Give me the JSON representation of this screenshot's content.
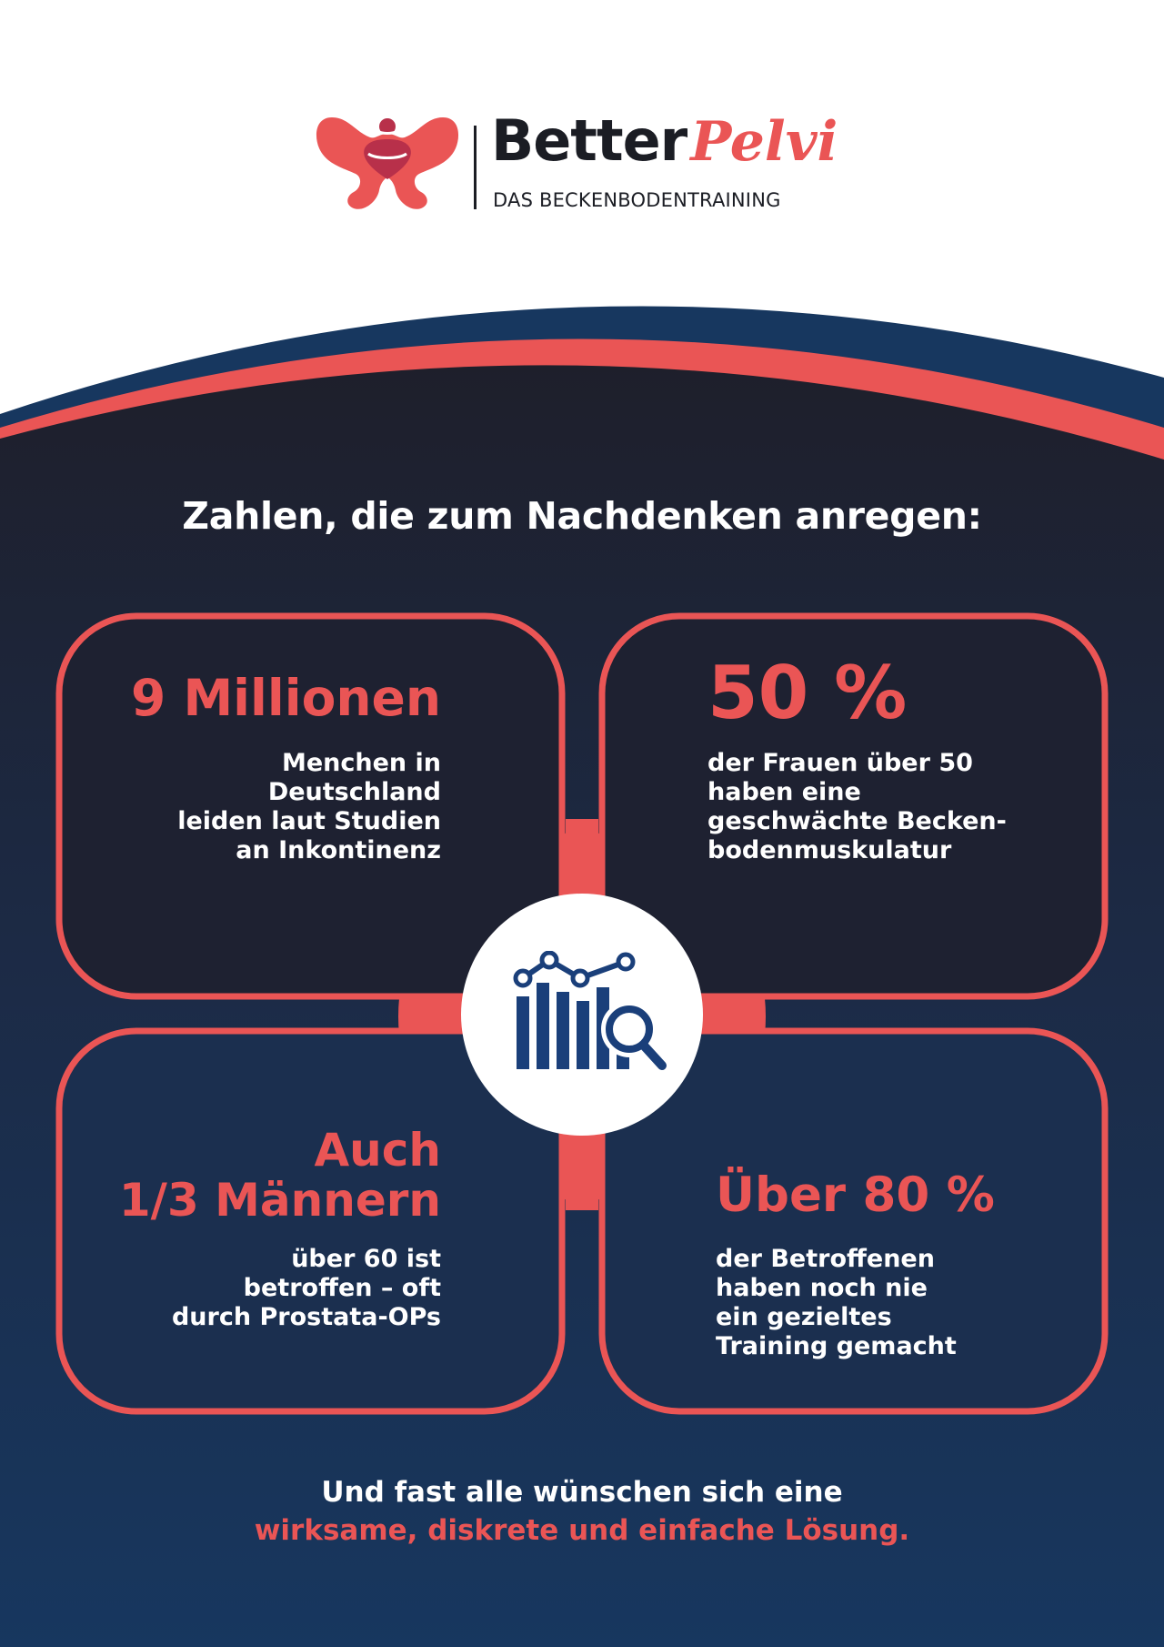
{
  "logo": {
    "word_dark": "Better",
    "word_accent": "Pelvi",
    "tagline": "DAS BECKENBODENTRAINING",
    "icon": "pelvis-icon"
  },
  "headline": "Zahlen, die zum Nachdenken anregen:",
  "stats": {
    "top_left": {
      "big": "9 Millionen",
      "text": "Menchen in\nDeutschland\nleiden laut Studien\nan Inkontinenz"
    },
    "top_right": {
      "big": "50 %",
      "text": "der Frauen über 50\nhaben eine\ngeschwächte Becken-\nbodenmuskulatur"
    },
    "bottom_left": {
      "big_line1": "Auch",
      "big_line2": "1/3 Männern",
      "text": "über 60 ist\nbetroffen – oft\ndurch Prostata-OPs"
    },
    "bottom_right": {
      "big": "Über 80 %",
      "text": "der Betroffenen\nhaben noch nie\nein gezieltes\nTraining gemacht"
    }
  },
  "center_icon": "chart-magnifier-icon",
  "footer": {
    "line1": "Und fast alle wünschen sich eine",
    "line2": "wirksame, diskrete und einfache Lösung."
  },
  "colors": {
    "accent": "#ea5555",
    "navy_dark": "#1e1f2b",
    "navy_blue": "#17375f",
    "icon_blue": "#1a3f7a"
  }
}
